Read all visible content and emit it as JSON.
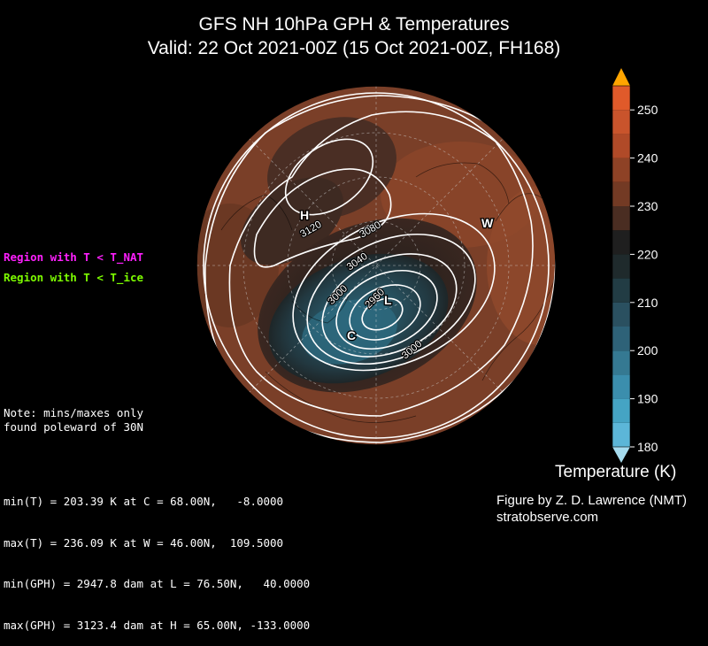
{
  "title": {
    "line1": "GFS NH 10hPa GPH & Temperatures",
    "line2": "Valid: 22 Oct 2021-00Z  (15 Oct 2021-00Z, FH168)"
  },
  "legend": {
    "nat": {
      "label": "Region with T < T_NAT",
      "color": "#ff1fff"
    },
    "ice": {
      "label": "Region with T < T_ice",
      "color": "#7cfc00"
    }
  },
  "note": {
    "line1": "Note: mins/maxes only",
    "line2": "found poleward of 30N"
  },
  "stats": [
    "min(T) = 203.39 K at C = 68.00N,   -8.0000",
    "max(T) = 236.09 K at W = 46.00N,  109.5000",
    "min(GPH) = 2947.8 dam at L = 76.50N,   40.0000",
    "max(GPH) = 3123.4 dam at H = 65.00N, -133.0000"
  ],
  "credit": {
    "line1": "Figure by Z. D. Lawrence (NMT)",
    "line2": "stratobserve.com"
  },
  "markers": {
    "H": "H",
    "L": "L",
    "C": "C",
    "W": "W"
  },
  "contour_labels": [
    "3120",
    "3080",
    "3040",
    "3000",
    "2960",
    "3000"
  ],
  "colorbar": {
    "title": "Temperature (K)",
    "ticks": [
      "250",
      "240",
      "230",
      "220",
      "210",
      "200",
      "190",
      "180"
    ],
    "min": 180,
    "max": 255,
    "colors": {
      "250": "#e05a2a",
      "245": "#c9542c",
      "240": "#b04a28",
      "235": "#8e4226",
      "230": "#733a24",
      "225": "#4a2d22",
      "220": "#1f1f1f",
      "215": "#1f2a2c",
      "210": "#223c44",
      "205": "#2a5060",
      "200": "#2e6278",
      "195": "#357992",
      "190": "#3b8ead",
      "185": "#45a4c4",
      "180": "#5cb6d8",
      "over": "#ffa500",
      "under": "#a6dcef"
    }
  },
  "chart_data": {
    "type": "polar-stereographic map",
    "fields": [
      "10hPa geopotential height (dam)",
      "temperature (K)"
    ],
    "contour_interval_dam": 40,
    "extremes": {
      "min_T": {
        "value": 203.39,
        "units": "K",
        "marker": "C",
        "lat": 68.0,
        "lon": -8.0
      },
      "max_T": {
        "value": 236.09,
        "units": "K",
        "marker": "W",
        "lat": 46.0,
        "lon": 109.5
      },
      "min_GPH": {
        "value": 2947.8,
        "units": "dam",
        "marker": "L",
        "lat": 76.5,
        "lon": 40.0
      },
      "max_GPH": {
        "value": 3123.4,
        "units": "dam",
        "marker": "H",
        "lat": 65.0,
        "lon": -133.0
      }
    }
  }
}
